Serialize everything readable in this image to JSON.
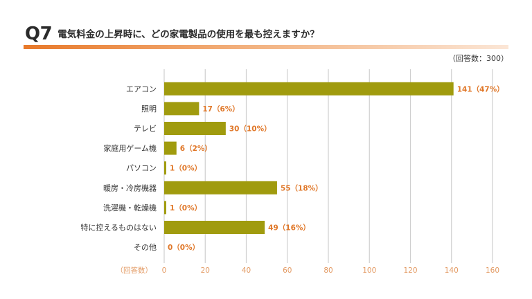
{
  "header": {
    "qnum": "Q7",
    "title": "電気料金の上昇時に、どの家電製品の使用を最も控えますか？",
    "respondents": "（回答数：300）"
  },
  "colors": {
    "bar": "#a09b0e",
    "value_label": "#e0782a",
    "gridline": "#cfcfcf",
    "tick_label": "#e39a63",
    "title_rule": "#e8792a"
  },
  "chart_data": {
    "type": "bar",
    "orientation": "horizontal",
    "categories": [
      "エアコン",
      "照明",
      "テレビ",
      "家庭用ゲーム機",
      "パソコン",
      "暖房・冷房機器",
      "洗濯機・乾燥機",
      "特に控えるものはない",
      "その他"
    ],
    "values": [
      141,
      17,
      30,
      6,
      1,
      55,
      1,
      49,
      0
    ],
    "value_labels": [
      "141（47%）",
      "17（6%）",
      "30（10%）",
      "6（2%）",
      "1（0%）",
      "55（18%）",
      "1（0%）",
      "49（16%）",
      "0（0%）"
    ],
    "xlabel": "（回答数）",
    "xlim": [
      0,
      160
    ],
    "xticks": [
      0,
      20,
      40,
      60,
      80,
      100,
      120,
      140,
      160
    ],
    "grid": "vertical"
  }
}
